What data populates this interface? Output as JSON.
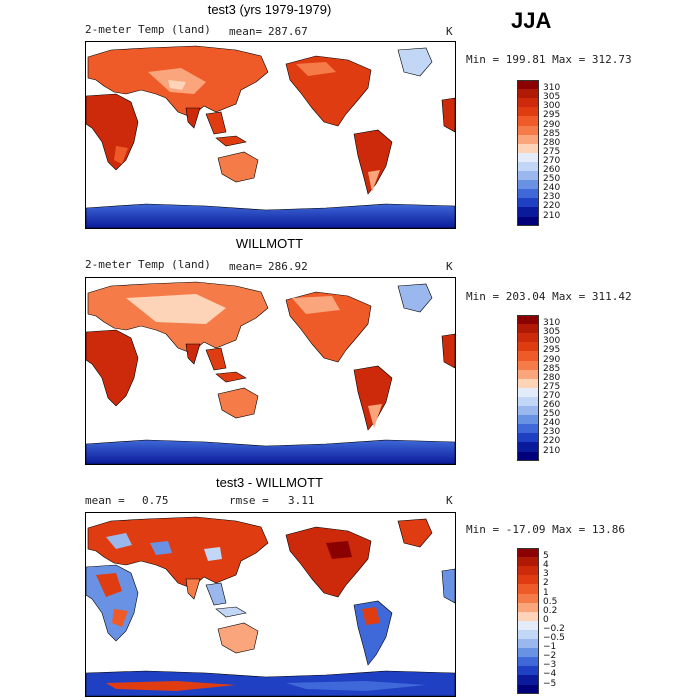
{
  "season": "JJA",
  "panels": [
    {
      "title": "test3 (yrs 1979-1979)",
      "variable": "2-meter Temp (land)",
      "stat_label": "mean=",
      "stat_value": "287.67",
      "stat2_label": "",
      "stat2_value": "",
      "units": "K",
      "minmax": "Min = 199.81 Max = 312.73",
      "colorbar": {
        "levels": [
          "310",
          "305",
          "300",
          "295",
          "290",
          "285",
          "280",
          "275",
          "270",
          "260",
          "250",
          "240",
          "230",
          "220",
          "210"
        ],
        "colors": [
          "#8b0000",
          "#b01a04",
          "#cc2a0a",
          "#e03c12",
          "#ee5a28",
          "#f57c48",
          "#fba57c",
          "#fdd4b8",
          "#e4ecfa",
          "#c2d6f5",
          "#9ab8ee",
          "#6a92e4",
          "#3f68d8",
          "#2040c4",
          "#0a1a9a",
          "#00007a"
        ]
      }
    },
    {
      "title": "WILLMOTT",
      "variable": "2-meter Temp (land)",
      "stat_label": "mean=",
      "stat_value": "286.92",
      "stat2_label": "",
      "stat2_value": "",
      "units": "K",
      "minmax": "Min = 203.04 Max = 311.42",
      "colorbar": {
        "levels": [
          "310",
          "305",
          "300",
          "295",
          "290",
          "285",
          "280",
          "275",
          "270",
          "260",
          "250",
          "240",
          "230",
          "220",
          "210"
        ],
        "colors": [
          "#8b0000",
          "#b01a04",
          "#cc2a0a",
          "#e03c12",
          "#ee5a28",
          "#f57c48",
          "#fba57c",
          "#fdd4b8",
          "#e4ecfa",
          "#c2d6f5",
          "#9ab8ee",
          "#6a92e4",
          "#3f68d8",
          "#2040c4",
          "#0a1a9a",
          "#00007a"
        ]
      }
    },
    {
      "title": "test3 - WILLMOTT",
      "variable": "",
      "stat_label": "mean =",
      "stat_value": "0.75",
      "stat2_label": "rmse =",
      "stat2_value": "3.11",
      "units": "K",
      "minmax": "Min = -17.09 Max = 13.86",
      "colorbar": {
        "levels": [
          "5",
          "4",
          "3",
          "2",
          "1",
          "0.5",
          "0.2",
          "0",
          "−0.2",
          "−0.5",
          "−1",
          "−2",
          "−3",
          "−4",
          "−5"
        ],
        "colors": [
          "#8b0000",
          "#b01a04",
          "#cc2a0a",
          "#e03c12",
          "#ee5a28",
          "#f57c48",
          "#fba57c",
          "#fdd4b8",
          "#e4ecfa",
          "#c2d6f5",
          "#9ab8ee",
          "#6a92e4",
          "#3f68d8",
          "#2040c4",
          "#0a1a9a",
          "#00007a"
        ]
      }
    }
  ]
}
